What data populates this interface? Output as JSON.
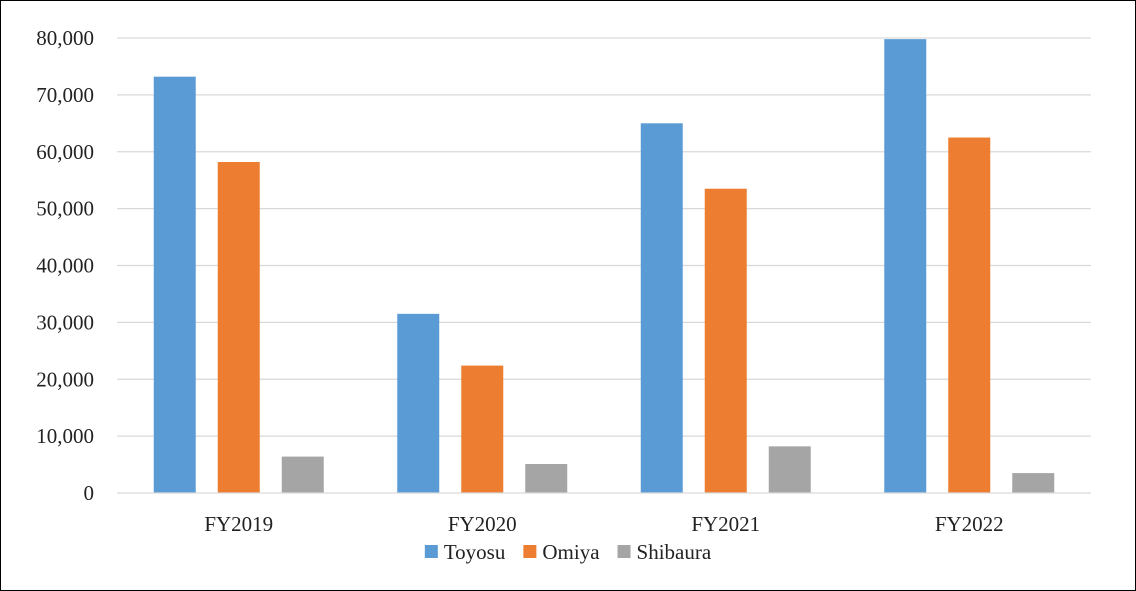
{
  "chart_data": {
    "type": "bar",
    "categories": [
      "FY2019",
      "FY2020",
      "FY2021",
      "FY2022"
    ],
    "series": [
      {
        "name": "Toyosu",
        "values": [
          73200,
          31500,
          65000,
          79800
        ],
        "color": "#5B9BD5"
      },
      {
        "name": "Omiya",
        "values": [
          58200,
          22400,
          53500,
          62500
        ],
        "color": "#ED7D31"
      },
      {
        "name": "Shibaura",
        "values": [
          6400,
          5100,
          8200,
          3500
        ],
        "color": "#A5A5A5"
      }
    ],
    "ylim": [
      0,
      80000
    ],
    "yticks": [
      0,
      10000,
      20000,
      30000,
      40000,
      50000,
      60000,
      70000,
      80000
    ],
    "ytick_labels": [
      "0",
      "10,000",
      "20,000",
      "30,000",
      "40,000",
      "50,000",
      "60,000",
      "70,000",
      "80,000"
    ],
    "grid": true,
    "gridline_color": "#D9D9D9",
    "legend_position": "bottom",
    "title": "",
    "xlabel": "",
    "ylabel": ""
  }
}
